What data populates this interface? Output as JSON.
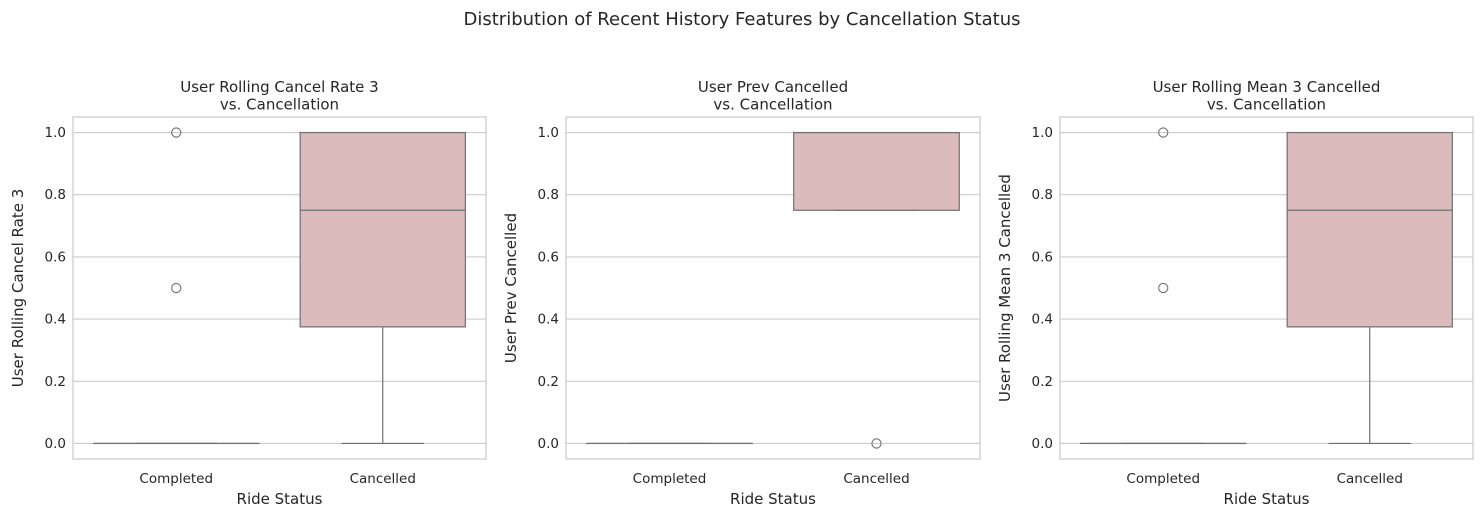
{
  "figure": {
    "suptitle": "Distribution of Recent History Features by Cancellation Status"
  },
  "style": {
    "box_fill": "#dbbbbb",
    "line_color": "#707070",
    "grid_color": "#cccccc",
    "spine_color": "#cccccc",
    "text_color": "#262626"
  },
  "chart_data": [
    {
      "type": "box",
      "title_lines": [
        "User Rolling Cancel Rate 3",
        "vs. Cancellation"
      ],
      "xlabel": "Ride Status",
      "ylabel": "User Rolling Cancel Rate 3",
      "categories": [
        "Completed",
        "Cancelled"
      ],
      "ylim": [
        -0.05,
        1.05
      ],
      "yticks": [
        0.0,
        0.2,
        0.4,
        0.6,
        0.8,
        1.0
      ],
      "ytick_labels": [
        "0.0",
        "0.2",
        "0.4",
        "0.6",
        "0.8",
        "1.0"
      ],
      "grid": "horizontal",
      "boxes": [
        {
          "category": "Completed",
          "whisker_low": 0.0,
          "q1": 0.0,
          "median": 0.0,
          "q3": 0.0,
          "whisker_high": 0.0,
          "outliers": [
            0.5,
            1.0
          ]
        },
        {
          "category": "Cancelled",
          "whisker_low": 0.0,
          "q1": 0.375,
          "median": 0.75,
          "q3": 1.0,
          "whisker_high": 1.0,
          "outliers": []
        }
      ]
    },
    {
      "type": "box",
      "title_lines": [
        "User Prev Cancelled",
        "vs. Cancellation"
      ],
      "xlabel": "Ride Status",
      "ylabel": "User Prev Cancelled",
      "categories": [
        "Completed",
        "Cancelled"
      ],
      "ylim": [
        -0.05,
        1.05
      ],
      "yticks": [
        0.0,
        0.2,
        0.4,
        0.6,
        0.8,
        1.0
      ],
      "ytick_labels": [
        "0.0",
        "0.2",
        "0.4",
        "0.6",
        "0.8",
        "1.0"
      ],
      "grid": "horizontal",
      "boxes": [
        {
          "category": "Completed",
          "whisker_low": 0.0,
          "q1": 0.0,
          "median": 0.0,
          "q3": 0.0,
          "whisker_high": 0.0,
          "outliers": []
        },
        {
          "category": "Cancelled",
          "whisker_low": 0.75,
          "q1": 0.75,
          "median": 1.0,
          "q3": 1.0,
          "whisker_high": 1.0,
          "outliers": [
            0.0
          ]
        }
      ]
    },
    {
      "type": "box",
      "title_lines": [
        "User Rolling Mean 3 Cancelled",
        "vs. Cancellation"
      ],
      "xlabel": "Ride Status",
      "ylabel": "User Rolling Mean 3 Cancelled",
      "categories": [
        "Completed",
        "Cancelled"
      ],
      "ylim": [
        -0.05,
        1.05
      ],
      "yticks": [
        0.0,
        0.2,
        0.4,
        0.6,
        0.8,
        1.0
      ],
      "ytick_labels": [
        "0.0",
        "0.2",
        "0.4",
        "0.6",
        "0.8",
        "1.0"
      ],
      "grid": "horizontal",
      "boxes": [
        {
          "category": "Completed",
          "whisker_low": 0.0,
          "q1": 0.0,
          "median": 0.0,
          "q3": 0.0,
          "whisker_high": 0.0,
          "outliers": [
            0.5,
            1.0
          ]
        },
        {
          "category": "Cancelled",
          "whisker_low": 0.0,
          "q1": 0.375,
          "median": 0.75,
          "q3": 1.0,
          "whisker_high": 1.0,
          "outliers": []
        }
      ]
    }
  ]
}
